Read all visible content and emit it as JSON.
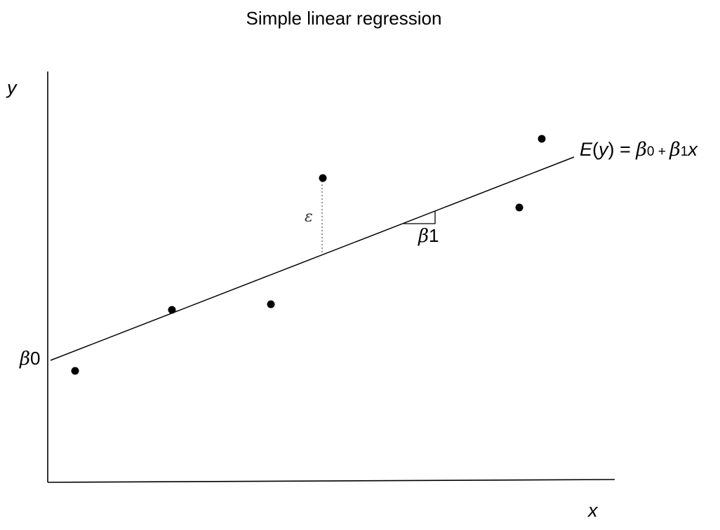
{
  "diagram": {
    "title": "Simple linear regression",
    "x_axis_label": "x",
    "y_axis_label": "y",
    "intercept_label": {
      "symbol": "β",
      "subscript": "0"
    },
    "slope_label": {
      "symbol": "β",
      "subscript": "1"
    },
    "residual_label": "ε",
    "equation": {
      "lhs_italic": "E",
      "lhs_paren_open": "(",
      "lhs_var": "y",
      "lhs_paren_close": ")",
      "equals": " = ",
      "beta_symbol": "β",
      "beta0_sub": "0",
      "plus": " + ",
      "beta1_sub": "1",
      "x_var": "x"
    }
  }
}
